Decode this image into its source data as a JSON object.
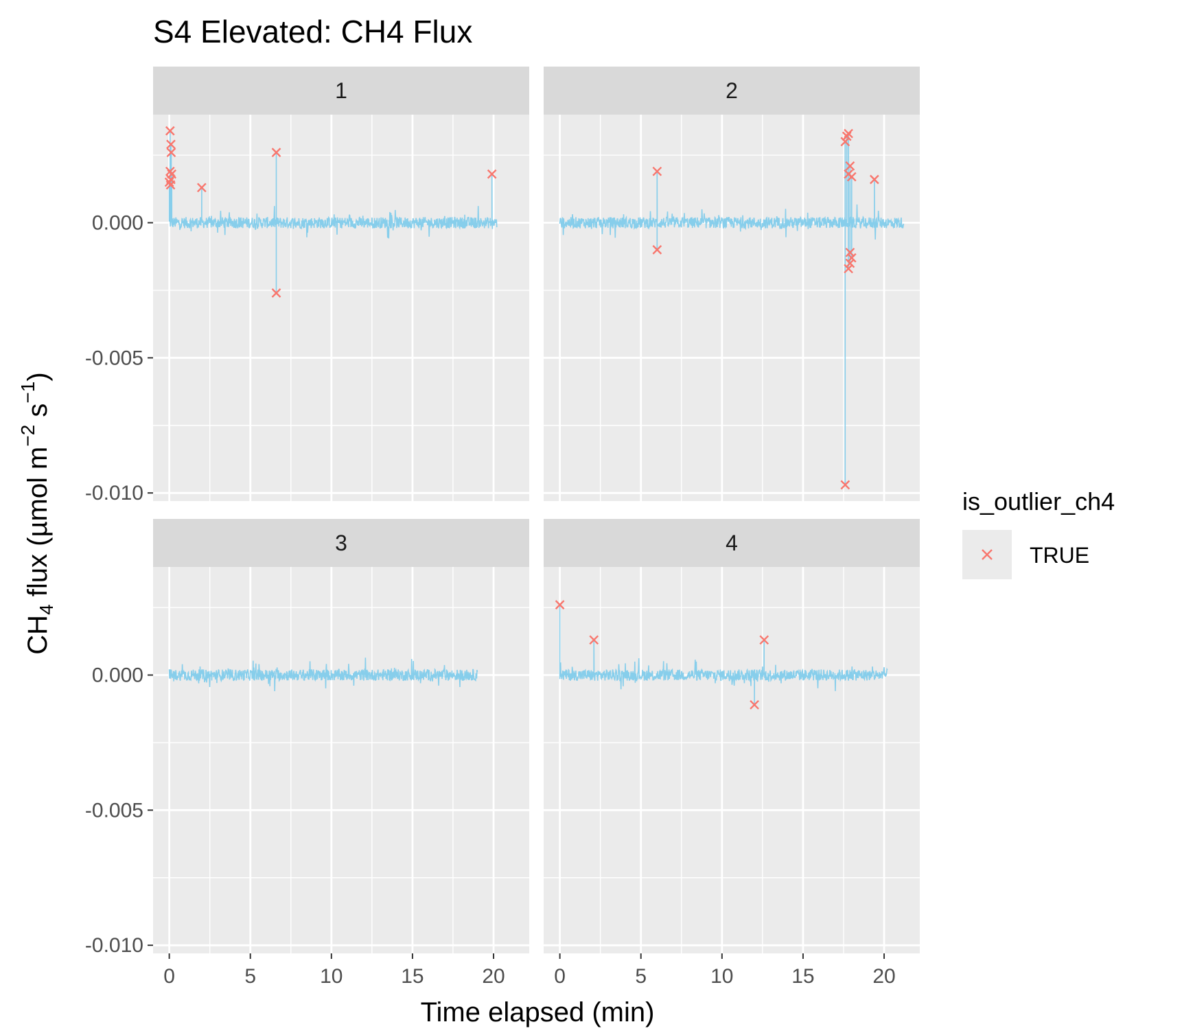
{
  "chart_data": {
    "type": "line",
    "title": "S4 Elevated: CH4 Flux",
    "xlabel": "Time elapsed (min)",
    "ylabel": {
      "prefix": "CH",
      "sub": "4",
      "mid": " flux (µmol m",
      "sup1": "−2",
      "mid2": " s",
      "sup2": "−1",
      "suffix": ")"
    },
    "xlim": [
      -1,
      22.2
    ],
    "ylim": [
      -0.0103,
      0.004
    ],
    "x_ticks": [
      0,
      5,
      10,
      15,
      20
    ],
    "x_tick_labels": [
      "0",
      "5",
      "10",
      "15",
      "20"
    ],
    "y_ticks": [
      0.0,
      -0.005,
      -0.01
    ],
    "y_tick_labels": [
      "0.000",
      "-0.005",
      "-0.010"
    ],
    "grid": true,
    "facets": [
      {
        "label": "1",
        "x_end": 20.2,
        "noise_amplitude": 0.0003,
        "outliers": [
          {
            "x": 0.05,
            "y": 0.0034
          },
          {
            "x": 0.1,
            "y": 0.0029
          },
          {
            "x": 0.12,
            "y": 0.0026
          },
          {
            "x": 0.05,
            "y": 0.0019
          },
          {
            "x": 0.15,
            "y": 0.0018
          },
          {
            "x": 0.1,
            "y": 0.0016
          },
          {
            "x": 0.0,
            "y": 0.0015
          },
          {
            "x": 0.08,
            "y": 0.0014
          },
          {
            "x": 2.0,
            "y": 0.0013
          },
          {
            "x": 6.6,
            "y": 0.0026
          },
          {
            "x": 6.6,
            "y": -0.0026
          },
          {
            "x": 19.9,
            "y": 0.0018
          }
        ]
      },
      {
        "label": "2",
        "x_end": 21.2,
        "noise_amplitude": 0.0003,
        "outliers": [
          {
            "x": 6.0,
            "y": 0.0019
          },
          {
            "x": 6.0,
            "y": -0.001
          },
          {
            "x": 17.6,
            "y": 0.003
          },
          {
            "x": 17.7,
            "y": 0.0032
          },
          {
            "x": 17.8,
            "y": 0.0033
          },
          {
            "x": 17.9,
            "y": 0.0021
          },
          {
            "x": 17.8,
            "y": 0.0018
          },
          {
            "x": 18.0,
            "y": 0.0017
          },
          {
            "x": 19.4,
            "y": 0.0016
          },
          {
            "x": 17.9,
            "y": -0.0011
          },
          {
            "x": 18.0,
            "y": -0.0013
          },
          {
            "x": 17.9,
            "y": -0.0015
          },
          {
            "x": 17.8,
            "y": -0.0017
          },
          {
            "x": 17.6,
            "y": -0.0097
          }
        ]
      },
      {
        "label": "3",
        "x_end": 19.0,
        "noise_amplitude": 0.0003,
        "outliers": []
      },
      {
        "label": "4",
        "x_end": 20.2,
        "noise_amplitude": 0.0003,
        "outliers": [
          {
            "x": 0.0,
            "y": 0.0026
          },
          {
            "x": 2.1,
            "y": 0.0013
          },
          {
            "x": 12.6,
            "y": 0.0013
          },
          {
            "x": 12.0,
            "y": -0.0011
          }
        ]
      }
    ],
    "legend": {
      "title": "is_outlier_ch4",
      "placement": "right",
      "entries": [
        {
          "label": "TRUE",
          "marker": "x"
        }
      ]
    },
    "colors": {
      "line": "#87ceeb",
      "outlier": "#f8766d",
      "panel_bg": "#ebebeb",
      "strip_bg": "#d9d9d9",
      "grid": "#ffffff"
    }
  }
}
